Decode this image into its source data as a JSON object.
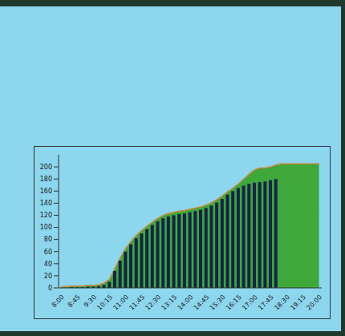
{
  "chart_data": {
    "type": "bar",
    "categories": [
      "8:00",
      null,
      null,
      "8:45",
      null,
      null,
      "9:30",
      null,
      null,
      "10:15",
      null,
      null,
      "11:00",
      null,
      null,
      "11:45",
      null,
      null,
      "12:30",
      null,
      null,
      "13:15",
      null,
      null,
      "14:00",
      null,
      null,
      "14:45",
      null,
      null,
      "15:30",
      null,
      null,
      "16:15",
      null,
      null,
      "17:00",
      null,
      null,
      "17:45",
      null,
      null,
      "18:30",
      null,
      null,
      "19:15",
      null,
      null,
      "20:00"
    ],
    "series": [
      {
        "type": "area",
        "color": "#3ea83a",
        "values": [
          2,
          2,
          3,
          3,
          3,
          4,
          4,
          5,
          8,
          14,
          32,
          50,
          65,
          77,
          87,
          95,
          102,
          109,
          115,
          120,
          123,
          125,
          127,
          128,
          130,
          132,
          134,
          137,
          141,
          146,
          152,
          159,
          165,
          172,
          180,
          188,
          195,
          198,
          198,
          200,
          203,
          205,
          205,
          205,
          205,
          205,
          205,
          205,
          205
        ]
      },
      {
        "type": "bar",
        "color": "#15234a",
        "values": [
          0,
          0,
          1,
          1,
          1,
          2,
          2,
          3,
          5,
          10,
          28,
          45,
          60,
          72,
          82,
          90,
          97,
          104,
          110,
          115,
          118,
          120,
          122,
          123,
          125,
          127,
          129,
          132,
          136,
          141,
          147,
          154,
          160,
          165,
          169,
          172,
          174,
          175,
          176,
          178,
          180,
          null,
          null,
          null,
          null,
          null,
          null,
          null,
          null
        ]
      }
    ],
    "ylim": [
      0,
      220
    ],
    "yticks": [
      0,
      20,
      40,
      60,
      80,
      100,
      120,
      140,
      160,
      180,
      200
    ],
    "grid": false
  }
}
